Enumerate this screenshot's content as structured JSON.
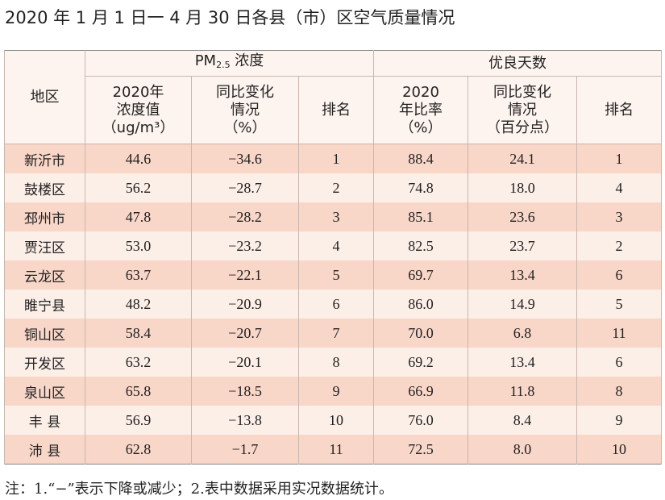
{
  "title": "2020 年 1 月 1 日一 4 月 30 日各县（市）区空气质量情况",
  "table": {
    "header": {
      "region": "地区",
      "pm_group": {
        "prefix": "PM",
        "sub": "2.5",
        "suffix": " 浓度"
      },
      "good_group": "优良天数",
      "columns": [
        [
          "2020年",
          "浓度值",
          "（ug/m³）"
        ],
        [
          "同比变化",
          "情况",
          "（%）"
        ],
        [
          "排名"
        ],
        [
          "2020",
          "年比率",
          "（%）"
        ],
        [
          "同比变化",
          "情况",
          "（百分点）"
        ],
        [
          "排名"
        ]
      ]
    },
    "rows": [
      [
        "新沂市",
        "44.6",
        "−34.6",
        "1",
        "88.4",
        "24.1",
        "1"
      ],
      [
        "鼓楼区",
        "56.2",
        "−28.7",
        "2",
        "74.8",
        "18.0",
        "4"
      ],
      [
        "邳州市",
        "47.8",
        "−28.2",
        "3",
        "85.1",
        "23.6",
        "3"
      ],
      [
        "贾汪区",
        "53.0",
        "−23.2",
        "4",
        "82.5",
        "23.7",
        "2"
      ],
      [
        "云龙区",
        "63.7",
        "−22.1",
        "5",
        "69.7",
        "13.4",
        "6"
      ],
      [
        "睢宁县",
        "48.2",
        "−20.9",
        "6",
        "86.0",
        "14.9",
        "5"
      ],
      [
        "铜山区",
        "58.4",
        "−20.7",
        "7",
        "70.0",
        "6.8",
        "11"
      ],
      [
        "开发区",
        "63.2",
        "−20.1",
        "8",
        "69.2",
        "13.4",
        "6"
      ],
      [
        "泉山区",
        "65.8",
        "−18.5",
        "9",
        "66.9",
        "11.8",
        "8"
      ],
      [
        "丰 县",
        "56.9",
        "−13.8",
        "10",
        "76.0",
        "8.4",
        "9"
      ],
      [
        "沛 县",
        "62.8",
        "−1.7",
        "11",
        "72.5",
        "8.0",
        "10"
      ]
    ]
  },
  "note": "注：1.“−”表示下降或减少；2.表中数据采用实况数据统计。"
}
